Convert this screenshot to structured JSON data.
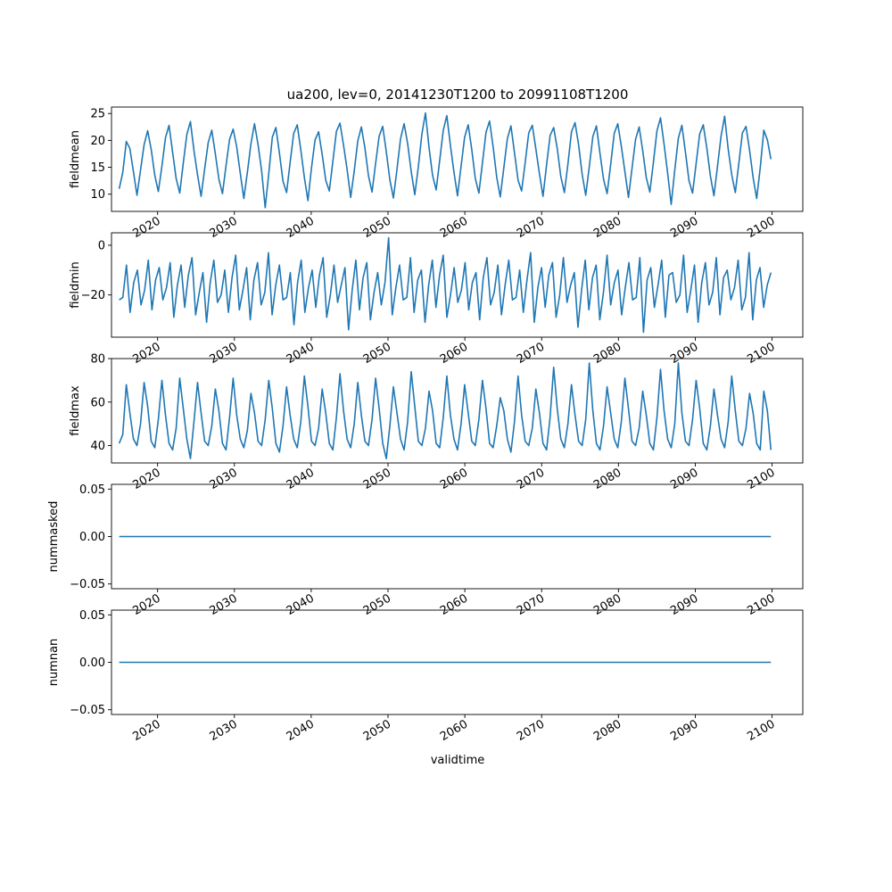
{
  "figure": {
    "title": "ua200, lev=0, 20141230T1200 to 20991108T1200",
    "xlabel": "validtime",
    "line_color": "#1f77b4"
  },
  "chart_data": [
    {
      "type": "line",
      "ylabel": "fieldmean",
      "xlim": [
        2014.0,
        2104.0
      ],
      "ylim": [
        6.8,
        26.2
      ],
      "yticks": [
        10,
        15,
        20,
        25
      ],
      "ytick_labels": [
        "10",
        "15",
        "20",
        "25"
      ],
      "xticks": [
        2020,
        2030,
        2040,
        2050,
        2060,
        2070,
        2080,
        2090,
        2100
      ],
      "xtick_labels": [
        "2020",
        "2030",
        "2040",
        "2050",
        "2060",
        "2070",
        "2080",
        "2090",
        "2100"
      ],
      "grid": false,
      "series": [
        {
          "x_start": 2015.0,
          "x_end": 2099.85,
          "values": [
            11,
            14,
            19.8,
            18.5,
            14.2,
            9.8,
            14.5,
            19.2,
            21.8,
            18.3,
            13.5,
            10.5,
            15.2,
            20.5,
            22.8,
            17.8,
            12.9,
            10.2,
            15.8,
            21.1,
            23.5,
            18.1,
            13.6,
            9.6,
            14.7,
            19.6,
            21.9,
            17.5,
            12.8,
            10.1,
            15.3,
            20.2,
            22.1,
            18.8,
            13.9,
            9.2,
            14.1,
            19.4,
            23.1,
            19.2,
            14.3,
            7.5,
            13.8,
            20.6,
            22.4,
            17.6,
            12.4,
            10.3,
            15.9,
            21.3,
            22.9,
            18.2,
            13.1,
            8.8,
            14.9,
            20.1,
            21.6,
            17.4,
            12.6,
            10.6,
            16.1,
            21.7,
            23.2,
            19.1,
            14.6,
            9.4,
            14.3,
            19.9,
            22.5,
            18.6,
            13.4,
            10.4,
            15.7,
            20.8,
            22.6,
            17.9,
            12.7,
            9.3,
            14.6,
            20.3,
            23.1,
            19.4,
            14.2,
            9.9,
            15.1,
            21.2,
            25.1,
            18.7,
            13.5,
            10.8,
            16.3,
            21.9,
            24.6,
            19.1,
            14.1,
            9.7,
            15.2,
            20.6,
            22.9,
            18.3,
            12.9,
            10.2,
            15.8,
            21.5,
            23.6,
            18.8,
            13.2,
            9.5,
            14.9,
            20.3,
            22.7,
            17.7,
            12.6,
            10.6,
            15.9,
            21.4,
            22.8,
            18.4,
            13.8,
            9.6,
            15.4,
            20.9,
            22.4,
            18.5,
            13.3,
            10.3,
            15.6,
            21.6,
            23.3,
            19.2,
            13.7,
            9.8,
            15.1,
            20.7,
            22.7,
            17.6,
            12.8,
            10.1,
            15.5,
            21.3,
            23.1,
            18.9,
            14.2,
            9.4,
            14.8,
            20.2,
            22.5,
            18.1,
            13.1,
            10.4,
            15.9,
            21.8,
            24.2,
            19.3,
            13.9,
            8.1,
            14.5,
            20.4,
            22.8,
            17.8,
            12.5,
            10.2,
            15.7,
            21.2,
            22.9,
            18.6,
            13.4,
            9.7,
            15.2,
            20.8,
            24.5,
            18.4,
            13.6,
            10.3,
            15.8,
            21.4,
            22.6,
            18.2,
            13.1,
            9.2,
            14.9,
            21.9,
            20.1,
            16.5
          ]
        }
      ]
    },
    {
      "type": "line",
      "ylabel": "fieldmin",
      "xlim": [
        2014.0,
        2104.0
      ],
      "ylim": [
        -37.0,
        5.0
      ],
      "yticks": [
        -20,
        0
      ],
      "ytick_labels": [
        "−20",
        "0"
      ],
      "xticks": [
        2020,
        2030,
        2040,
        2050,
        2060,
        2070,
        2080,
        2090,
        2100
      ],
      "xtick_labels": [
        "2020",
        "2030",
        "2040",
        "2050",
        "2060",
        "2070",
        "2080",
        "2090",
        "2100"
      ],
      "grid": false,
      "series": [
        {
          "x_start": 2015.0,
          "x_end": 2099.85,
          "values": [
            -22,
            -21,
            -8,
            -27,
            -15,
            -10,
            -24,
            -18,
            -6,
            -26,
            -14,
            -9,
            -22,
            -17,
            -7,
            -29,
            -16,
            -8,
            -25,
            -12,
            -5,
            -28,
            -19,
            -11,
            -31,
            -15,
            -6,
            -23,
            -20,
            -10,
            -27,
            -13,
            -4,
            -26,
            -18,
            -9,
            -30,
            -14,
            -7,
            -24,
            -19,
            -3,
            -28,
            -16,
            -8,
            -22,
            -21,
            -11,
            -32,
            -15,
            -6,
            -27,
            -17,
            -10,
            -25,
            -12,
            -5,
            -29,
            -20,
            -8,
            -23,
            -16,
            -9,
            -34,
            -18,
            -6,
            -26,
            -13,
            -7,
            -30,
            -19,
            -11,
            -24,
            -15,
            3,
            -28,
            -17,
            -8,
            -22,
            -21,
            -5,
            -27,
            -14,
            -10,
            -31,
            -16,
            -6,
            -25,
            -12,
            -4,
            -29,
            -20,
            -9,
            -23,
            -18,
            -7,
            -26,
            -15,
            -11,
            -30,
            -13,
            -5,
            -24,
            -19,
            -8,
            -28,
            -16,
            -6,
            -22,
            -21,
            -10,
            -27,
            -14,
            -3,
            -31,
            -17,
            -9,
            -25,
            -12,
            -7,
            -29,
            -20,
            -5,
            -23,
            -16,
            -11,
            -33,
            -18,
            -6,
            -26,
            -13,
            -8,
            -30,
            -19,
            -4,
            -24,
            -15,
            -10,
            -28,
            -17,
            -7,
            -22,
            -21,
            -5,
            -35,
            -14,
            -9,
            -25,
            -16,
            -6,
            -29,
            -12,
            -11,
            -23,
            -20,
            -4,
            -27,
            -18,
            -8,
            -31,
            -15,
            -7,
            -24,
            -19,
            -5,
            -28,
            -13,
            -10,
            -22,
            -17,
            -6,
            -26,
            -21,
            -3,
            -30,
            -14,
            -9,
            -25,
            -16,
            -11
          ]
        }
      ]
    },
    {
      "type": "line",
      "ylabel": "fieldmax",
      "xlim": [
        2014.0,
        2104.0
      ],
      "ylim": [
        32.0,
        80.0
      ],
      "yticks": [
        40,
        60,
        80
      ],
      "ytick_labels": [
        "40",
        "60",
        "80"
      ],
      "xticks": [
        2020,
        2030,
        2040,
        2050,
        2060,
        2070,
        2080,
        2090,
        2100
      ],
      "xtick_labels": [
        "2020",
        "2030",
        "2040",
        "2050",
        "2060",
        "2070",
        "2080",
        "2090",
        "2100"
      ],
      "grid": false,
      "series": [
        {
          "x_start": 2015.0,
          "x_end": 2099.85,
          "values": [
            41,
            45,
            68,
            55,
            43,
            40,
            50,
            69,
            58,
            42,
            39,
            52,
            70,
            54,
            41,
            38,
            48,
            71,
            57,
            43,
            34,
            51,
            69,
            55,
            42,
            40,
            49,
            66,
            56,
            41,
            38,
            53,
            71,
            54,
            43,
            39,
            47,
            64,
            55,
            42,
            40,
            52,
            70,
            57,
            41,
            37,
            49,
            67,
            54,
            43,
            39,
            51,
            72,
            58,
            42,
            40,
            48,
            66,
            55,
            41,
            38,
            53,
            73,
            56,
            43,
            39,
            50,
            69,
            54,
            42,
            40,
            52,
            71,
            57,
            41,
            34,
            49,
            67,
            55,
            43,
            38,
            51,
            74,
            58,
            42,
            40,
            48,
            65,
            56,
            41,
            39,
            53,
            72,
            54,
            43,
            38,
            50,
            68,
            55,
            42,
            40,
            52,
            70,
            57,
            41,
            39,
            49,
            62,
            56,
            43,
            37,
            51,
            72,
            54,
            42,
            40,
            48,
            66,
            55,
            41,
            38,
            53,
            76,
            57,
            43,
            39,
            50,
            68,
            54,
            42,
            40,
            52,
            78,
            56,
            41,
            38,
            49,
            67,
            55,
            43,
            39,
            51,
            71,
            57,
            42,
            40,
            48,
            65,
            54,
            41,
            38,
            53,
            75,
            56,
            43,
            39,
            50,
            78,
            55,
            42,
            40,
            52,
            70,
            57,
            41,
            38,
            49,
            66,
            54,
            43,
            39,
            51,
            72,
            56,
            42,
            40,
            48,
            64,
            55,
            41,
            38,
            65,
            56,
            38
          ]
        }
      ]
    },
    {
      "type": "line",
      "ylabel": "nummasked",
      "xlim": [
        2014.0,
        2104.0
      ],
      "ylim": [
        -0.055,
        0.055
      ],
      "yticks": [
        -0.05,
        0.0,
        0.05
      ],
      "ytick_labels": [
        "−0.05",
        "0.00",
        "0.05"
      ],
      "xticks": [
        2020,
        2030,
        2040,
        2050,
        2060,
        2070,
        2080,
        2090,
        2100
      ],
      "xtick_labels": [
        "2020",
        "2030",
        "2040",
        "2050",
        "2060",
        "2070",
        "2080",
        "2090",
        "2100"
      ],
      "grid": false,
      "series": [
        {
          "x_start": 2015.0,
          "x_end": 2099.85,
          "values": [
            0,
            0
          ]
        }
      ]
    },
    {
      "type": "line",
      "ylabel": "numnan",
      "xlim": [
        2014.0,
        2104.0
      ],
      "ylim": [
        -0.055,
        0.055
      ],
      "yticks": [
        -0.05,
        0.0,
        0.05
      ],
      "ytick_labels": [
        "−0.05",
        "0.00",
        "0.05"
      ],
      "xticks": [
        2020,
        2030,
        2040,
        2050,
        2060,
        2070,
        2080,
        2090,
        2100
      ],
      "xtick_labels": [
        "2020",
        "2030",
        "2040",
        "2050",
        "2060",
        "2070",
        "2080",
        "2090",
        "2100"
      ],
      "grid": false,
      "series": [
        {
          "x_start": 2015.0,
          "x_end": 2099.85,
          "values": [
            0,
            0
          ]
        }
      ]
    }
  ]
}
